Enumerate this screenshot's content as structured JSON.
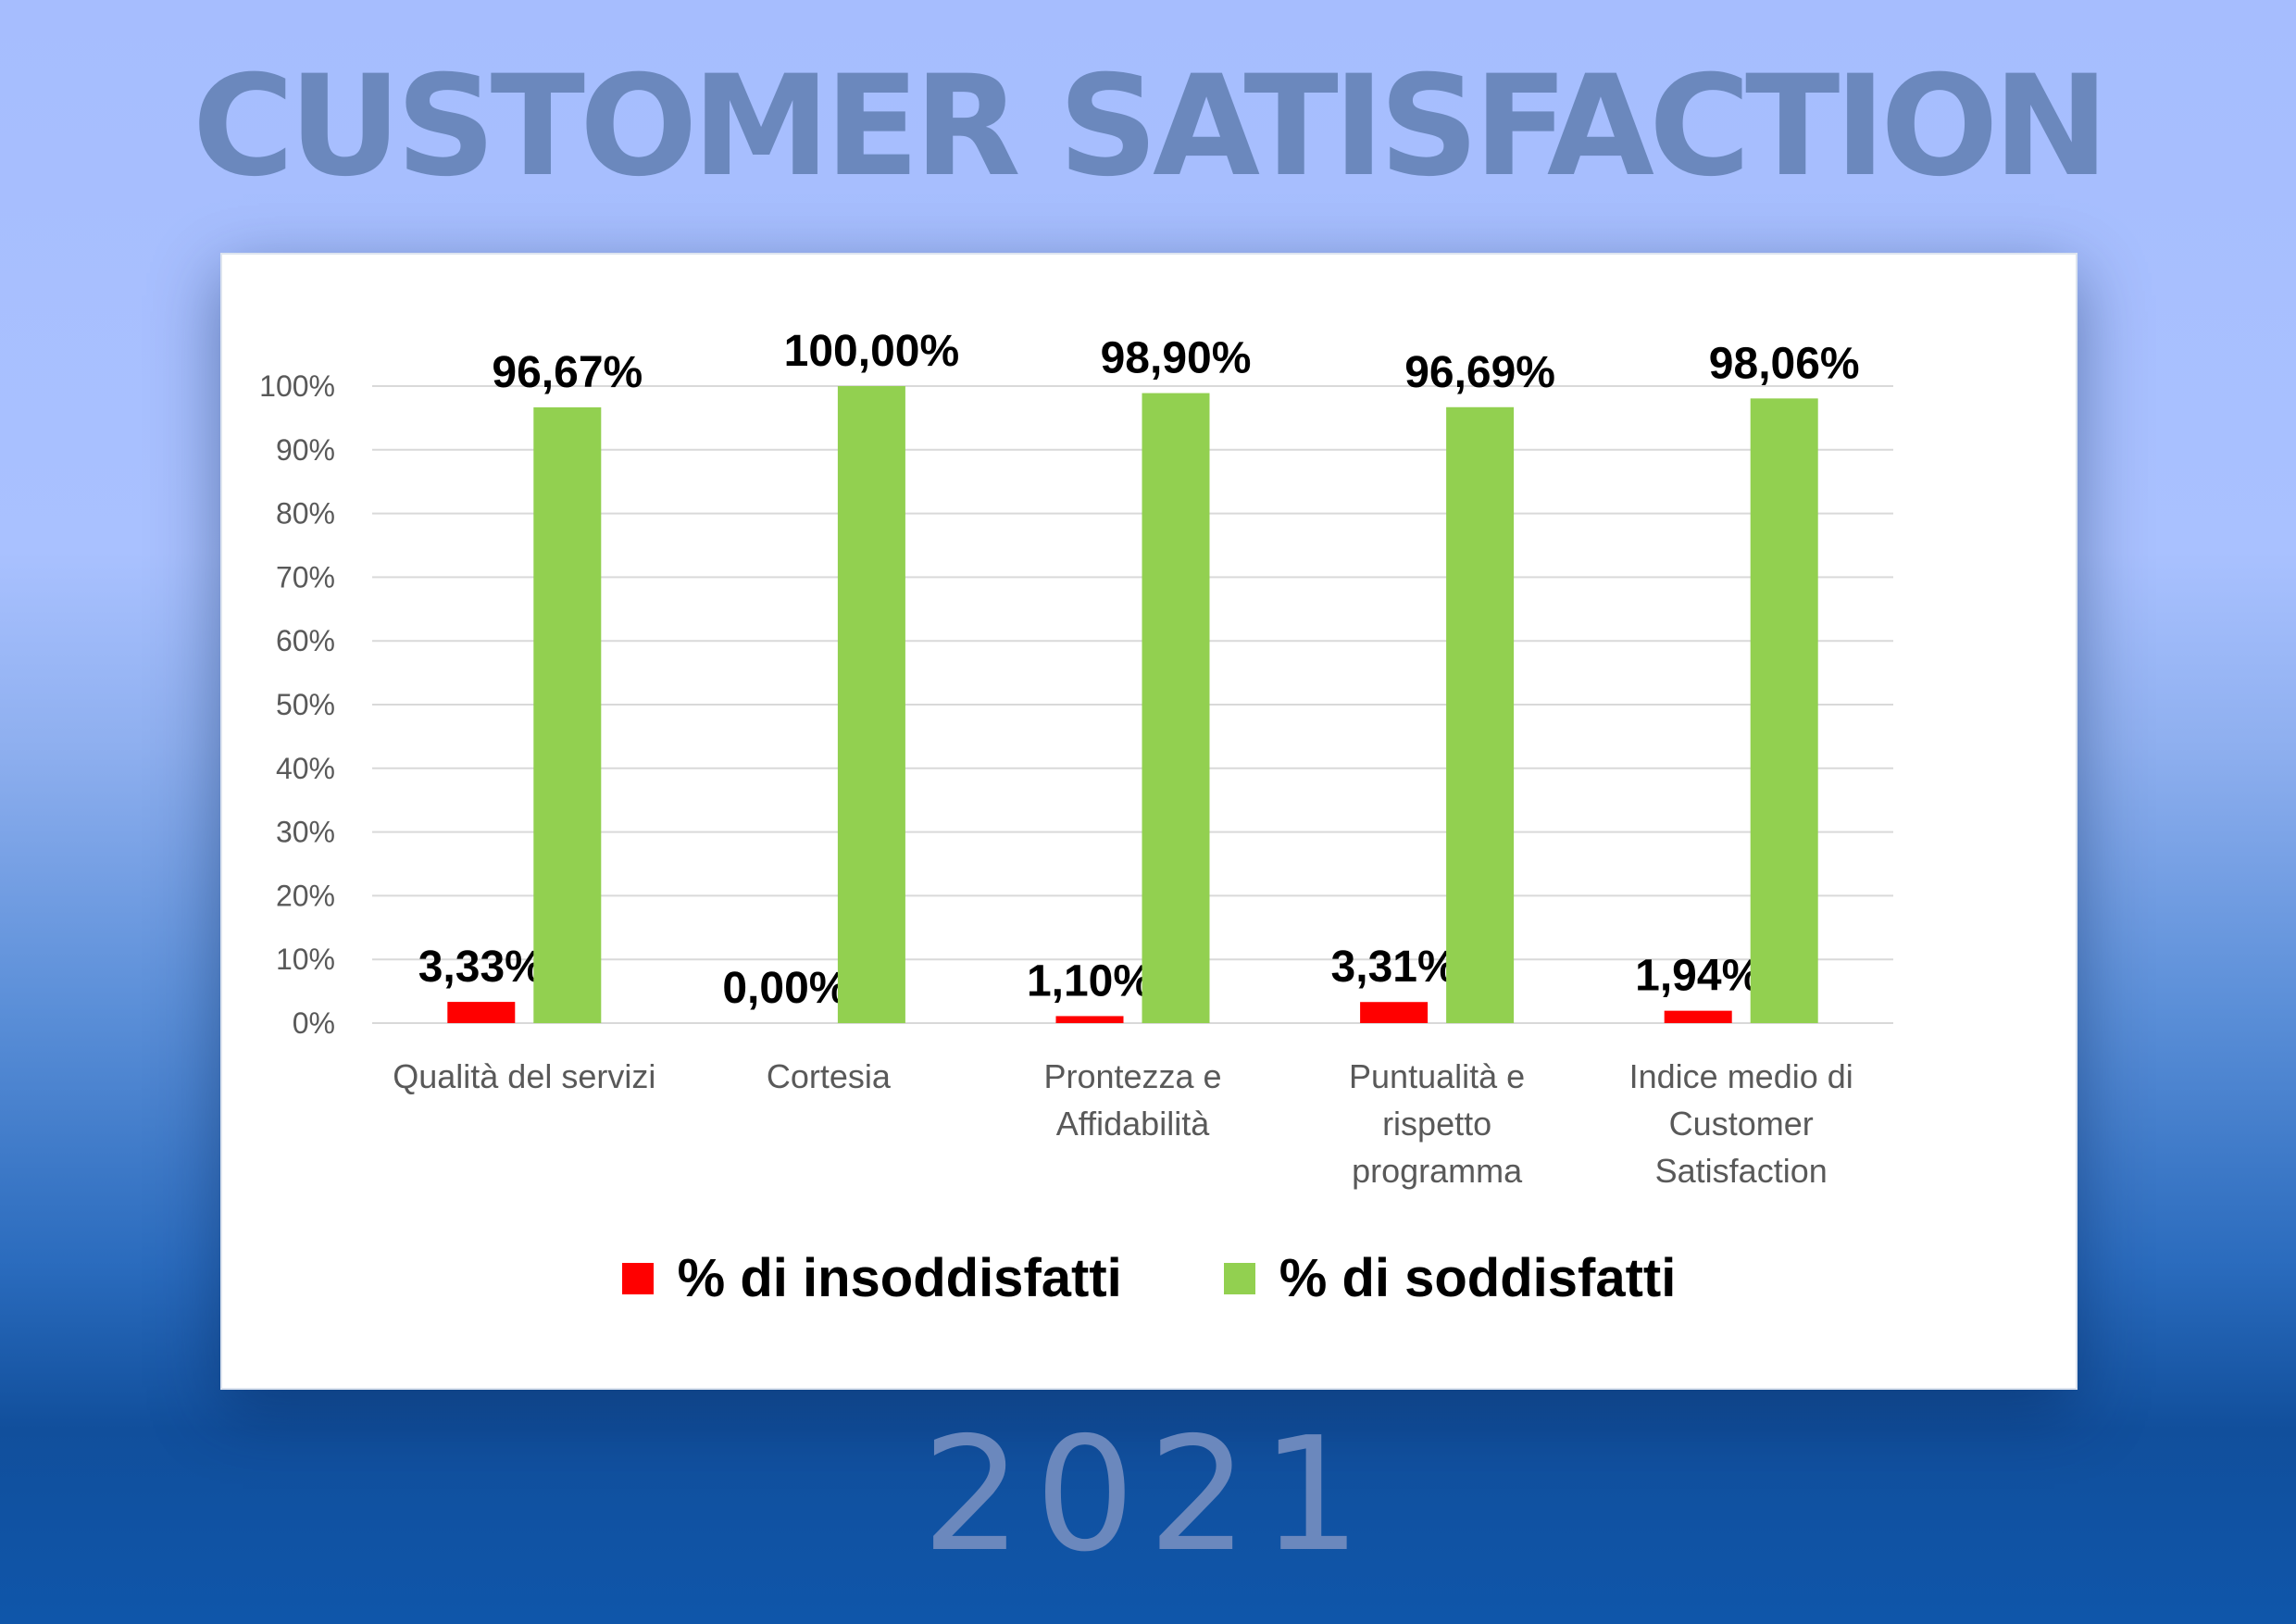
{
  "header": {
    "title": "CUSTOMER SATISFACTION"
  },
  "footer": {
    "year": "2021"
  },
  "colors": {
    "insoddisfatti": "#ff0000",
    "soddisfatti": "#92d050",
    "gridline": "#d9d9d9"
  },
  "chart_data": {
    "type": "bar",
    "categories": [
      [
        "Qualità del servizi"
      ],
      [
        "Cortesia"
      ],
      [
        "Prontezza e",
        "Affidabilità"
      ],
      [
        "Puntualità e",
        "rispetto",
        "programma"
      ],
      [
        "Indice medio di",
        "Customer",
        "Satisfaction"
      ]
    ],
    "series": [
      {
        "name": "% di insoddisfatti",
        "values": [
          3.33,
          0.0,
          1.1,
          3.31,
          1.94
        ],
        "labels": [
          "3,33%",
          "0,00%",
          "1,10%",
          "3,31%",
          "1,94%"
        ]
      },
      {
        "name": "% di soddisfatti",
        "values": [
          96.67,
          100.0,
          98.9,
          96.69,
          98.06
        ],
        "labels": [
          "96,67%",
          "100,00%",
          "98,90%",
          "96,69%",
          "98,06%"
        ]
      }
    ],
    "yticks": [
      "0%",
      "10%",
      "20%",
      "30%",
      "40%",
      "50%",
      "60%",
      "70%",
      "80%",
      "90%",
      "100%"
    ],
    "ylim": [
      0,
      100
    ],
    "grid": true,
    "legend": "bottom"
  }
}
